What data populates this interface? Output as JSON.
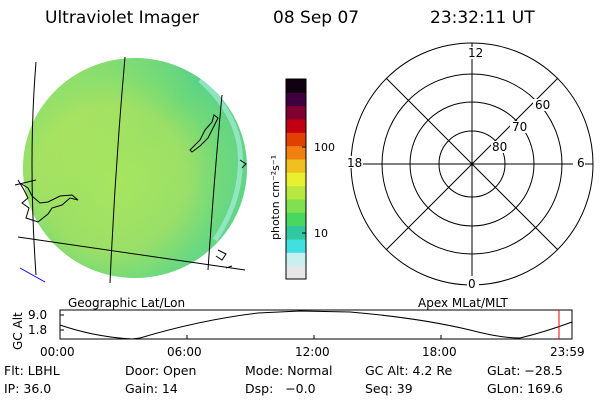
{
  "header": {
    "title": "Ultraviolet Imager",
    "date": "08 Sep 07",
    "time": "23:32:11 UT"
  },
  "colorbar": {
    "label": "photon cm⁻²s⁻¹",
    "ticks": [
      "100",
      "10"
    ],
    "colors": [
      "#e6e6e6",
      "#c8f0f0",
      "#40e0e0",
      "#30c8a0",
      "#48d860",
      "#80e050",
      "#b8e840",
      "#e8f030",
      "#f0c020",
      "#f08010",
      "#e04000",
      "#c00010",
      "#800030",
      "#400040",
      "#100010"
    ]
  },
  "polar_plot": {
    "mlt_labels": [
      "12",
      "18",
      "6",
      "0"
    ],
    "lat_labels": [
      "60",
      "70",
      "80"
    ]
  },
  "map": {
    "left_caption": "Geographic Lat/Lon",
    "right_caption": "Apex MLat/MLT"
  },
  "altitude_plot": {
    "ylabel": "GC Alt",
    "yticks": [
      "9.0",
      "1.8"
    ],
    "xticks": [
      "00:00",
      "06:00",
      "12:00",
      "18:00",
      "23:59"
    ]
  },
  "footer": {
    "filter": "Flt: LBHL",
    "door": "Door: Open",
    "mode": "Mode: Normal",
    "gc_alt": "GC Alt: 4.2 Re",
    "glat": "GLat: −28.5",
    "ip": "IP: 36.0",
    "gain": "Gain: 14",
    "dsp": "Dsp:   −0.0",
    "seq": "Seq: 39",
    "glon": "GLon: 169.6"
  }
}
